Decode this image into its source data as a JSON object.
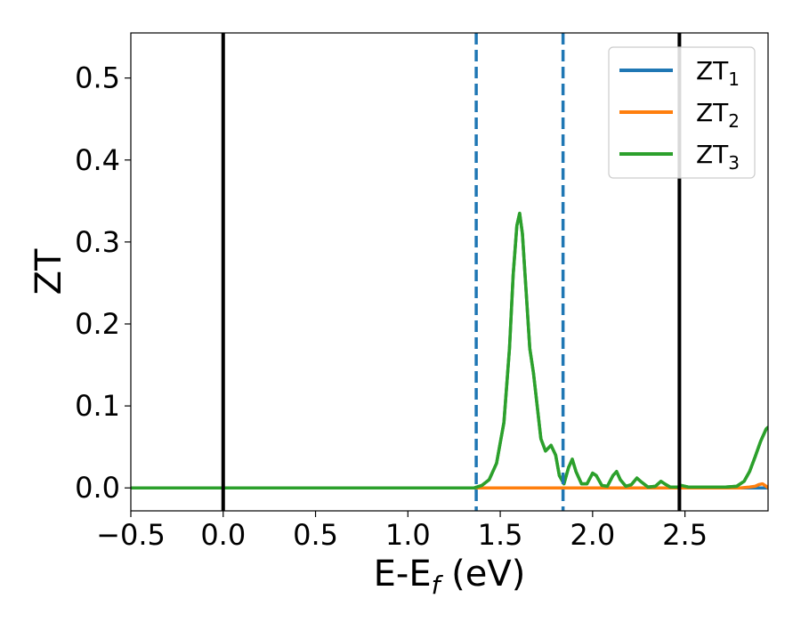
{
  "chart_data": {
    "type": "line",
    "xlabel": "E-E",
    "xlabel_sub": "f",
    "xlabel_unit": " (eV)",
    "ylabel": "ZT",
    "xlim": [
      -0.5,
      2.95
    ],
    "ylim": [
      -0.028,
      0.555
    ],
    "xticks": [
      -0.5,
      0.0,
      0.5,
      1.0,
      1.5,
      2.0,
      2.5
    ],
    "xtick_labels": [
      "−0.5",
      "0.0",
      "0.5",
      "1.0",
      "1.5",
      "2.0",
      "2.5"
    ],
    "yticks": [
      0.0,
      0.1,
      0.2,
      0.3,
      0.4,
      0.5
    ],
    "ytick_labels": [
      "0.0",
      "0.1",
      "0.2",
      "0.3",
      "0.4",
      "0.5"
    ],
    "grid": false,
    "legend_position": "top-right",
    "vertical_lines": [
      {
        "x": 0.0,
        "style": "solid",
        "color": "#000000"
      },
      {
        "x": 2.47,
        "style": "solid",
        "color": "#000000"
      },
      {
        "x": 1.37,
        "style": "dashed",
        "color": "#1f77b4"
      },
      {
        "x": 1.84,
        "style": "dashed",
        "color": "#1f77b4"
      }
    ],
    "series": [
      {
        "name": "ZT",
        "sub": "1",
        "color": "#1f77b4",
        "points": [
          [
            -0.5,
            0.0
          ],
          [
            2.95,
            0.0
          ]
        ]
      },
      {
        "name": "ZT",
        "sub": "2",
        "color": "#ff7f0e",
        "points": [
          [
            -0.5,
            0.0
          ],
          [
            2.6,
            0.0
          ],
          [
            2.8,
            0.0
          ],
          [
            2.85,
            0.001
          ],
          [
            2.88,
            0.002
          ],
          [
            2.9,
            0.004
          ],
          [
            2.92,
            0.005
          ],
          [
            2.94,
            0.002
          ],
          [
            2.95,
            0.0
          ]
        ]
      },
      {
        "name": "ZT",
        "sub": "3",
        "color": "#2ca02c",
        "points": [
          [
            -0.5,
            0.0
          ],
          [
            1.3,
            0.0
          ],
          [
            1.36,
            0.0
          ],
          [
            1.4,
            0.003
          ],
          [
            1.44,
            0.01
          ],
          [
            1.48,
            0.03
          ],
          [
            1.52,
            0.08
          ],
          [
            1.55,
            0.17
          ],
          [
            1.57,
            0.26
          ],
          [
            1.59,
            0.32
          ],
          [
            1.605,
            0.335
          ],
          [
            1.62,
            0.31
          ],
          [
            1.64,
            0.24
          ],
          [
            1.66,
            0.17
          ],
          [
            1.68,
            0.14
          ],
          [
            1.7,
            0.1
          ],
          [
            1.72,
            0.06
          ],
          [
            1.745,
            0.045
          ],
          [
            1.775,
            0.052
          ],
          [
            1.8,
            0.04
          ],
          [
            1.82,
            0.015
          ],
          [
            1.845,
            0.005
          ],
          [
            1.87,
            0.025
          ],
          [
            1.89,
            0.035
          ],
          [
            1.91,
            0.02
          ],
          [
            1.94,
            0.005
          ],
          [
            1.97,
            0.005
          ],
          [
            2.0,
            0.018
          ],
          [
            2.02,
            0.015
          ],
          [
            2.05,
            0.003
          ],
          [
            2.08,
            0.002
          ],
          [
            2.11,
            0.015
          ],
          [
            2.13,
            0.02
          ],
          [
            2.15,
            0.01
          ],
          [
            2.18,
            0.002
          ],
          [
            2.21,
            0.004
          ],
          [
            2.24,
            0.012
          ],
          [
            2.26,
            0.008
          ],
          [
            2.3,
            0.001
          ],
          [
            2.34,
            0.002
          ],
          [
            2.37,
            0.008
          ],
          [
            2.39,
            0.005
          ],
          [
            2.42,
            0.001
          ],
          [
            2.46,
            0.001
          ],
          [
            2.48,
            0.003
          ],
          [
            2.52,
            0.001
          ],
          [
            2.58,
            0.001
          ],
          [
            2.65,
            0.001
          ],
          [
            2.72,
            0.001
          ],
          [
            2.78,
            0.002
          ],
          [
            2.82,
            0.008
          ],
          [
            2.85,
            0.02
          ],
          [
            2.88,
            0.038
          ],
          [
            2.91,
            0.057
          ],
          [
            2.94,
            0.072
          ],
          [
            2.95,
            0.074
          ]
        ]
      }
    ]
  }
}
